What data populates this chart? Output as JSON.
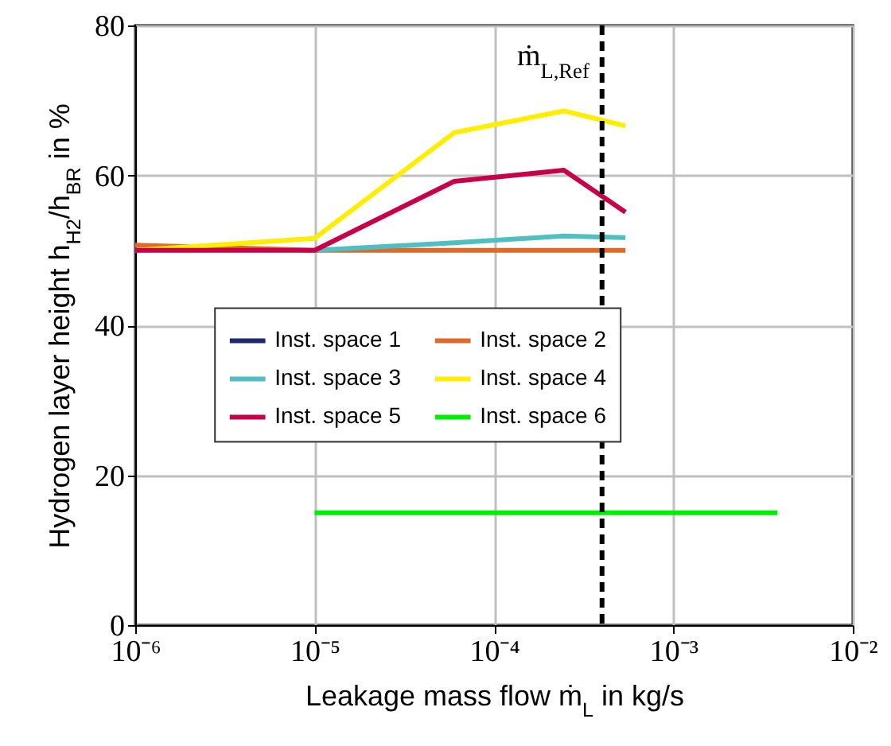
{
  "chart_data": {
    "type": "line",
    "xlabel": "Leakage mass flow ṁ$_{L}$ in kg/s",
    "ylabel": "Hydrogen layer height h$_{H2}$/h$_{BR}$ in %",
    "log": "x",
    "xlim": [
      1e-06,
      0.01
    ],
    "xticks": [
      {
        "value": 1e-06,
        "label": "10⁻⁶"
      },
      {
        "value": 1e-05,
        "label": "10⁻⁵"
      },
      {
        "value": 0.0001,
        "label": "10⁻⁴"
      },
      {
        "value": 0.001,
        "label": "10⁻³"
      },
      {
        "value": 0.01,
        "label": "10⁻²"
      }
    ],
    "ylim": [
      0,
      80
    ],
    "yticks": [
      0,
      20,
      40,
      60,
      80
    ],
    "grid": true,
    "legend": "center",
    "line_style": "solid",
    "marker": "none",
    "series": [
      {
        "name": "Inst. space 1",
        "color": "#1f2a6e"
      },
      {
        "name": "Inst. space 2",
        "color": "#e0692a",
        "x": [
          1e-06,
          1e-05,
          6e-05,
          0.000245,
          0.00054
        ],
        "values": [
          50.7,
          50,
          50,
          50,
          50
        ]
      },
      {
        "name": "Inst. space 3",
        "color": "#4fbfc4",
        "x": [
          1e-05,
          6e-05,
          0.000245,
          0.00054
        ],
        "values": [
          50,
          51,
          51.9,
          51.7
        ]
      },
      {
        "name": "Inst. space 4",
        "color": "#ffee00",
        "x": [
          1e-06,
          1e-05,
          6e-05,
          0.000245,
          0.00054
        ],
        "values": [
          50,
          51.6,
          65.7,
          68.6,
          66.6
        ]
      },
      {
        "name": "Inst. space 5",
        "color": "#c8004a",
        "x": [
          1e-06,
          1e-05,
          6e-05,
          0.000245,
          0.00054
        ],
        "values": [
          50,
          50,
          59.2,
          60.7,
          55.1
        ]
      },
      {
        "name": "Inst. space 6",
        "color": "#00ee00",
        "x": [
          1e-05,
          0.0038
        ],
        "values": [
          15,
          15
        ]
      }
    ],
    "ref_lines": [
      {
        "axis": "x",
        "value": 0.0004,
        "label": "ṁ$_{L,Ref}$",
        "color": "#000000",
        "line_style": "dashed"
      }
    ]
  }
}
